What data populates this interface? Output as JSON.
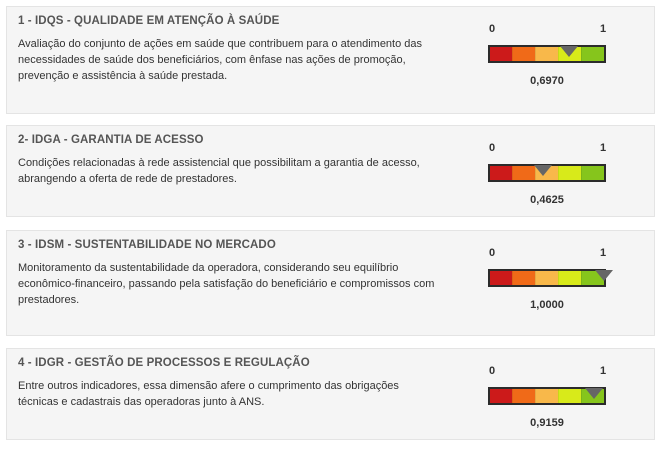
{
  "gauge": {
    "min_label": "0",
    "max_label": "1",
    "segment_colors": [
      "#cc1a1a",
      "#f06a18",
      "#f8b84a",
      "#d8ea1a",
      "#86c51c"
    ]
  },
  "cards": [
    {
      "title": "1 - IDQS - QUALIDADE EM ATENÇÃO À SAÚDE",
      "description": "Avaliação do conjunto de ações em saúde que contribuem para o atendimento das necessidades de saúde dos beneficiários, com ênfase nas ações de promoção, prevenção e assistência à saúde prestada.",
      "value": 0.697,
      "value_label": "0,6970"
    },
    {
      "title": "2- IDGA - GARANTIA DE ACESSO",
      "description": "Condições relacionadas à rede assistencial que possibilitam a garantia de acesso, abrangendo a oferta de rede de prestadores.",
      "value": 0.4625,
      "value_label": "0,4625"
    },
    {
      "title": "3 - IDSM - SUSTENTABILIDADE NO MERCADO",
      "description": "Monitoramento da sustentabilidade da operadora, considerando seu equilíbrio econômico-financeiro, passando pela satisfação do beneficiário e compromissos com prestadores.",
      "value": 1.0,
      "value_label": "1,0000"
    },
    {
      "title": "4 - IDGR - GESTÃO DE PROCESSOS E REGULAÇÃO",
      "description": "Entre outros indicadores, essa dimensão afere o cumprimento das obrigações técnicas e cadastrais das operadoras junto à ANS.",
      "value": 0.9159,
      "value_label": "0,9159"
    }
  ]
}
